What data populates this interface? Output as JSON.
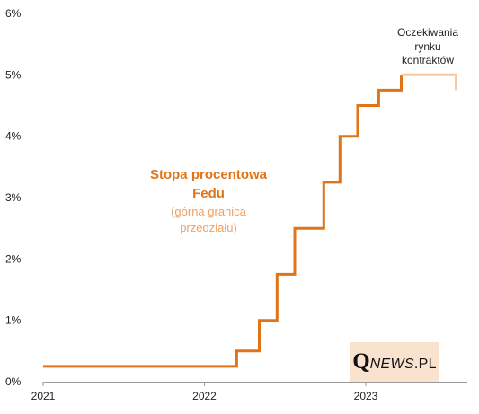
{
  "chart_data": {
    "type": "line",
    "line_shape": "step",
    "xlim": [
      2021.0,
      2023.6
    ],
    "ylim": [
      0,
      6
    ],
    "x_ticks": [
      "2021",
      "2022",
      "2023"
    ],
    "y_ticks": [
      "0%",
      "1%",
      "2%",
      "3%",
      "4%",
      "5%",
      "6%"
    ],
    "grid": false,
    "series": [
      {
        "name": "Stopa procentowa Fedu",
        "subtitle": "(górna granica przedziału)",
        "color": "#E07418",
        "points": [
          {
            "x": 2021.0,
            "y": 0.25
          },
          {
            "x": 2022.2,
            "y": 0.25
          },
          {
            "x": 2022.2,
            "y": 0.5
          },
          {
            "x": 2022.34,
            "y": 0.5
          },
          {
            "x": 2022.34,
            "y": 1.0
          },
          {
            "x": 2022.45,
            "y": 1.0
          },
          {
            "x": 2022.45,
            "y": 1.75
          },
          {
            "x": 2022.56,
            "y": 1.75
          },
          {
            "x": 2022.56,
            "y": 2.5
          },
          {
            "x": 2022.74,
            "y": 2.5
          },
          {
            "x": 2022.74,
            "y": 3.25
          },
          {
            "x": 2022.84,
            "y": 3.25
          },
          {
            "x": 2022.84,
            "y": 4.0
          },
          {
            "x": 2022.95,
            "y": 4.0
          },
          {
            "x": 2022.95,
            "y": 4.5
          },
          {
            "x": 2023.08,
            "y": 4.5
          },
          {
            "x": 2023.08,
            "y": 4.75
          },
          {
            "x": 2023.22,
            "y": 4.75
          },
          {
            "x": 2023.22,
            "y": 5.0
          }
        ]
      },
      {
        "name": "Oczekiwania rynku kontraktów",
        "color": "#F8C9A0",
        "points": [
          {
            "x": 2023.22,
            "y": 5.0
          },
          {
            "x": 2023.56,
            "y": 5.0
          },
          {
            "x": 2023.56,
            "y": 4.75
          }
        ]
      }
    ],
    "annotations": {
      "main_title_lines": [
        "Stopa procentowa",
        "Fedu"
      ],
      "main_subtitle_lines": [
        "(górna granica",
        "przedziału)"
      ],
      "expectations_lines": [
        "Oczekiwania",
        "rynku",
        "kontraktów"
      ]
    }
  },
  "logo": {
    "q": "Q",
    "news": "NEWS",
    "pl": ".PL"
  }
}
